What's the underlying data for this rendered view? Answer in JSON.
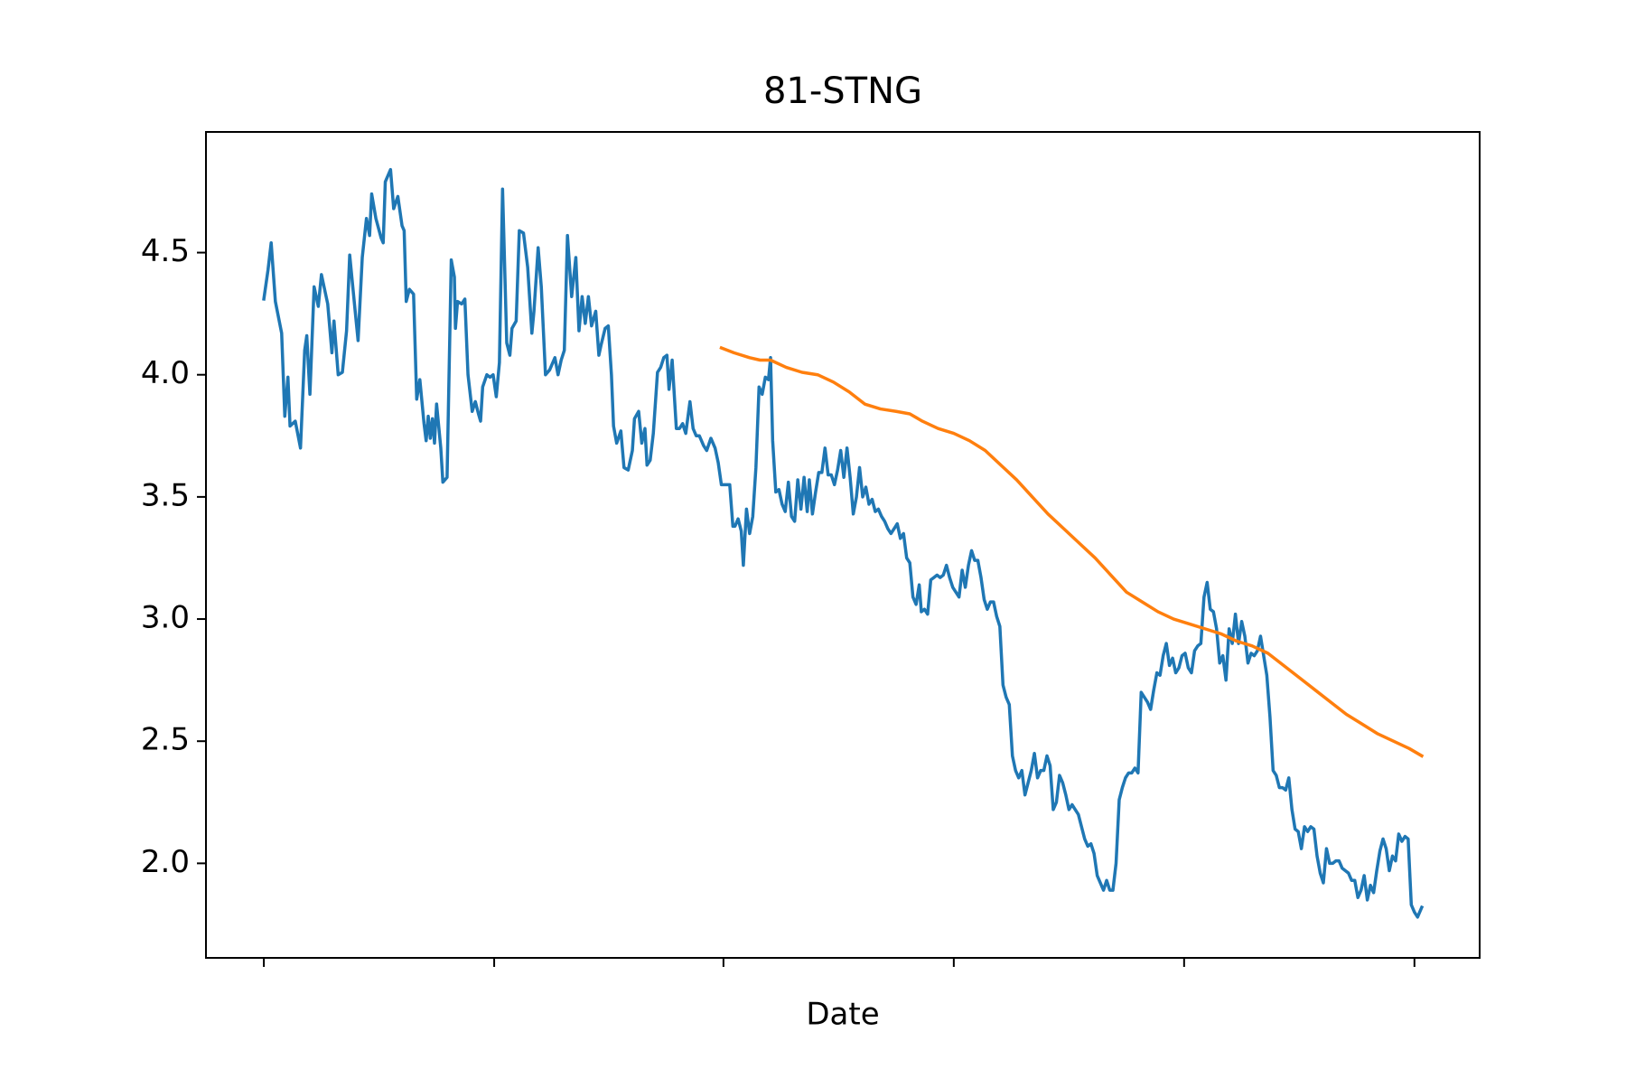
{
  "chart_data": {
    "type": "line",
    "title": "81-STNG",
    "x_label": "Date",
    "xlim": [
      -55.3,
      1161.3
    ],
    "xticks": [
      0,
      220,
      439,
      659,
      879,
      1099
    ],
    "xtick_labels": false,
    "ylim": [
      1.613,
      4.994
    ],
    "yticks": [
      {
        "value": 2,
        "label": "2.0"
      },
      2.5,
      {
        "value": 3,
        "label": "3.0"
      },
      3.5,
      {
        "value": 4,
        "label": "4.0"
      },
      4.5
    ],
    "grid": false,
    "series": [
      {
        "color": "#1f77b4",
        "x": [
          0,
          4,
          7,
          11,
          17,
          20,
          23,
          25,
          30,
          35,
          39,
          41,
          44,
          48,
          52,
          55,
          61,
          65,
          67,
          71,
          75,
          79,
          82,
          87,
          90,
          94,
          98,
          101,
          103,
          107,
          112,
          114,
          116,
          121,
          124,
          128,
          132,
          134,
          136,
          139,
          143,
          146,
          149,
          153,
          155,
          157,
          159,
          161,
          163,
          165,
          169,
          171,
          175,
          179,
          182,
          183,
          185,
          189,
          192,
          195,
          199,
          202,
          205,
          207,
          209,
          213,
          216,
          219,
          222,
          225,
          228,
          232,
          235,
          237,
          241,
          244,
          248,
          252,
          256,
          258,
          262,
          265,
          269,
          273,
          278,
          281,
          284,
          287,
          290,
          294,
          298,
          301,
          304,
          307,
          310,
          313,
          317,
          320,
          322,
          326,
          329,
          332,
          334,
          337,
          341,
          344,
          348,
          352,
          354,
          358,
          361,
          364,
          366,
          369,
          372,
          376,
          379,
          382,
          385,
          387,
          390,
          394,
          397,
          400,
          403,
          407,
          410,
          413,
          416,
          420,
          423,
          427,
          431,
          434,
          437,
          440,
          445,
          448,
          450,
          453,
          456,
          458,
          461,
          464,
          467,
          470,
          473,
          476,
          479,
          482,
          484,
          486,
          489,
          492,
          495,
          498,
          501,
          504,
          507,
          510,
          513,
          516,
          519,
          521,
          524,
          527,
          530,
          533,
          536,
          539,
          542,
          545,
          548,
          551,
          554,
          557,
          560,
          563,
          566,
          569,
          572,
          575,
          578,
          581,
          584,
          587,
          590,
          593,
          596,
          599,
          602,
          605,
          608,
          611,
          614,
          617,
          620,
          623,
          626,
          628,
          631,
          634,
          637,
          640,
          643,
          646,
          649,
          652,
          655,
          658,
          661,
          664,
          667,
          670,
          673,
          676,
          679,
          682,
          685,
          688,
          691,
          694,
          697,
          700,
          703,
          706,
          709,
          712,
          715,
          718,
          721,
          724,
          727,
          730,
          733,
          736,
          739,
          742,
          745,
          748,
          751,
          754,
          757,
          760,
          763,
          766,
          769,
          772,
          775,
          778,
          781,
          784,
          787,
          790,
          793,
          796,
          799,
          802,
          805,
          808,
          811,
          814,
          817,
          820,
          823,
          826,
          829,
          832,
          835,
          838,
          841,
          844,
          847,
          850,
          853,
          856,
          859,
          862,
          865,
          868,
          871,
          874,
          877,
          880,
          883,
          886,
          889,
          892,
          895,
          898,
          901,
          904,
          907,
          910,
          913,
          916,
          919,
          922,
          925,
          928,
          931,
          934,
          937,
          940,
          943,
          946,
          949,
          952,
          955,
          958,
          961,
          964,
          967,
          970,
          973,
          976,
          979,
          982,
          985,
          988,
          991,
          994,
          997,
          1000,
          1003,
          1006,
          1009,
          1012,
          1015,
          1018,
          1021,
          1024,
          1027,
          1030,
          1033,
          1036,
          1039,
          1042,
          1045,
          1048,
          1051,
          1054,
          1057,
          1060,
          1063,
          1066,
          1069,
          1072,
          1075,
          1078,
          1081,
          1084,
          1087,
          1090,
          1093,
          1096,
          1099,
          1102,
          1106
        ],
        "values": [
          4.31,
          4.43,
          4.54,
          4.3,
          4.17,
          3.83,
          3.99,
          3.79,
          3.81,
          3.7,
          4.1,
          4.16,
          3.92,
          4.36,
          4.28,
          4.41,
          4.29,
          4.09,
          4.22,
          4.0,
          4.01,
          4.18,
          4.49,
          4.27,
          4.14,
          4.48,
          4.64,
          4.57,
          4.74,
          4.64,
          4.56,
          4.54,
          4.79,
          4.84,
          4.68,
          4.73,
          4.61,
          4.59,
          4.3,
          4.35,
          4.33,
          3.9,
          3.98,
          3.8,
          3.73,
          3.83,
          3.74,
          3.82,
          3.72,
          3.88,
          3.7,
          3.56,
          3.58,
          4.47,
          4.4,
          4.19,
          4.3,
          4.29,
          4.31,
          4.0,
          3.85,
          3.89,
          3.84,
          3.81,
          3.95,
          4.0,
          3.99,
          4.0,
          3.91,
          4.05,
          4.76,
          4.13,
          4.08,
          4.19,
          4.22,
          4.59,
          4.58,
          4.44,
          4.17,
          4.26,
          4.52,
          4.36,
          4.0,
          4.02,
          4.07,
          4.0,
          4.06,
          4.1,
          4.57,
          4.32,
          4.48,
          4.18,
          4.32,
          4.21,
          4.32,
          4.2,
          4.26,
          4.08,
          4.12,
          4.19,
          4.2,
          4.0,
          3.79,
          3.72,
          3.77,
          3.62,
          3.61,
          3.69,
          3.82,
          3.85,
          3.72,
          3.78,
          3.63,
          3.65,
          3.76,
          4.01,
          4.03,
          4.07,
          4.08,
          3.94,
          4.06,
          3.78,
          3.78,
          3.8,
          3.76,
          3.89,
          3.78,
          3.75,
          3.75,
          3.71,
          3.69,
          3.74,
          3.7,
          3.64,
          3.55,
          3.55,
          3.55,
          3.38,
          3.38,
          3.41,
          3.36,
          3.22,
          3.45,
          3.35,
          3.42,
          3.62,
          3.95,
          3.92,
          3.99,
          3.98,
          4.07,
          3.73,
          3.52,
          3.53,
          3.47,
          3.44,
          3.56,
          3.42,
          3.4,
          3.57,
          3.45,
          3.58,
          3.44,
          3.57,
          3.43,
          3.52,
          3.6,
          3.6,
          3.7,
          3.59,
          3.59,
          3.55,
          3.61,
          3.69,
          3.58,
          3.7,
          3.58,
          3.43,
          3.5,
          3.62,
          3.5,
          3.54,
          3.47,
          3.49,
          3.44,
          3.45,
          3.42,
          3.4,
          3.37,
          3.35,
          3.37,
          3.39,
          3.33,
          3.35,
          3.25,
          3.23,
          3.09,
          3.06,
          3.14,
          3.03,
          3.04,
          3.02,
          3.16,
          3.17,
          3.18,
          3.17,
          3.18,
          3.22,
          3.17,
          3.13,
          3.11,
          3.09,
          3.2,
          3.13,
          3.22,
          3.28,
          3.24,
          3.24,
          3.17,
          3.08,
          3.04,
          3.07,
          3.07,
          3.01,
          2.97,
          2.73,
          2.68,
          2.65,
          2.44,
          2.38,
          2.35,
          2.38,
          2.28,
          2.33,
          2.38,
          2.45,
          2.35,
          2.38,
          2.38,
          2.44,
          2.4,
          2.22,
          2.25,
          2.36,
          2.33,
          2.28,
          2.22,
          2.24,
          2.22,
          2.2,
          2.15,
          2.1,
          2.07,
          2.08,
          2.04,
          1.95,
          1.92,
          1.89,
          1.93,
          1.89,
          1.89,
          2.0,
          2.26,
          2.31,
          2.35,
          2.37,
          2.37,
          2.39,
          2.37,
          2.7,
          2.68,
          2.66,
          2.63,
          2.71,
          2.78,
          2.77,
          2.85,
          2.9,
          2.81,
          2.84,
          2.78,
          2.8,
          2.85,
          2.86,
          2.8,
          2.78,
          2.87,
          2.89,
          2.9,
          3.09,
          3.15,
          3.04,
          3.03,
          2.96,
          2.82,
          2.85,
          2.75,
          2.96,
          2.9,
          3.02,
          2.9,
          2.99,
          2.93,
          2.82,
          2.86,
          2.85,
          2.87,
          2.93,
          2.85,
          2.77,
          2.6,
          2.38,
          2.36,
          2.31,
          2.31,
          2.3,
          2.35,
          2.22,
          2.14,
          2.13,
          2.06,
          2.15,
          2.13,
          2.15,
          2.14,
          2.03,
          1.96,
          1.92,
          2.06,
          2.0,
          2.0,
          2.01,
          2.01,
          1.98,
          1.97,
          1.96,
          1.93,
          1.93,
          1.86,
          1.89,
          1.95,
          1.85,
          1.91,
          1.88,
          1.97,
          2.05,
          2.1,
          2.06,
          1.97,
          2.03,
          2.01,
          2.12,
          2.09,
          2.11,
          2.1,
          1.83,
          1.8,
          1.78,
          1.82
        ]
      },
      {
        "color": "#ff7f0e",
        "x": [
          437,
          449,
          464,
          474,
          484,
          499,
          514,
          529,
          544,
          559,
          574,
          589,
          604,
          617,
          629,
          644,
          659,
          674,
          689,
          704,
          719,
          734,
          749,
          764,
          779,
          794,
          809,
          824,
          839,
          854,
          869,
          884,
          899,
          914,
          929,
          944,
          959,
          974,
          989,
          1004,
          1019,
          1034,
          1049,
          1064,
          1079,
          1094,
          1106
        ],
        "values": [
          4.11,
          4.09,
          4.07,
          4.06,
          4.06,
          4.03,
          4.01,
          4.0,
          3.97,
          3.93,
          3.88,
          3.86,
          3.85,
          3.84,
          3.81,
          3.78,
          3.76,
          3.73,
          3.69,
          3.63,
          3.57,
          3.5,
          3.43,
          3.37,
          3.31,
          3.25,
          3.18,
          3.11,
          3.07,
          3.03,
          3.0,
          2.98,
          2.96,
          2.94,
          2.91,
          2.89,
          2.86,
          2.81,
          2.76,
          2.71,
          2.66,
          2.61,
          2.57,
          2.53,
          2.5,
          2.47,
          2.44
        ]
      }
    ]
  }
}
